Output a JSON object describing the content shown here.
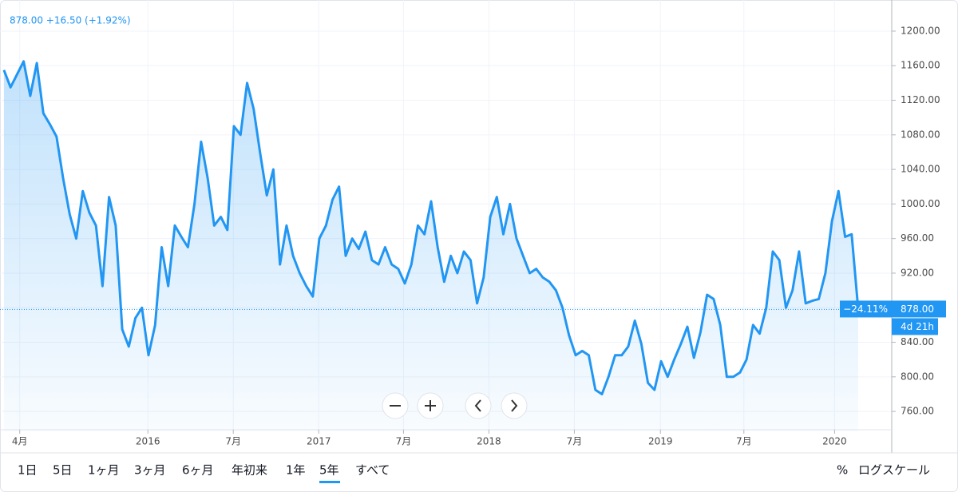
{
  "header": {
    "quote": "878.00 +16.50 (+1.92%)"
  },
  "chart_data": {
    "type": "area",
    "color": "#2196f3",
    "values": [
      1155,
      1135,
      1150,
      1165,
      1125,
      1163,
      1105,
      1092,
      1078,
      1030,
      988,
      960,
      1015,
      990,
      975,
      905,
      1008,
      975,
      855,
      835,
      868,
      880,
      825,
      860,
      950,
      905,
      975,
      962,
      950,
      1000,
      1072,
      1030,
      975,
      985,
      970,
      1090,
      1080,
      1140,
      1110,
      1058,
      1010,
      1040,
      930,
      975,
      940,
      920,
      905,
      893,
      960,
      975,
      1005,
      1020,
      940,
      960,
      948,
      968,
      935,
      930,
      950,
      930,
      925,
      908,
      930,
      975,
      965,
      1003,
      950,
      910,
      940,
      920,
      945,
      935,
      885,
      915,
      985,
      1008,
      965,
      1000,
      960,
      940,
      920,
      925,
      915,
      910,
      900,
      880,
      848,
      825,
      830,
      825,
      785,
      780,
      800,
      825,
      825,
      835,
      865,
      838,
      793,
      785,
      818,
      800,
      820,
      838,
      858,
      822,
      852,
      895,
      890,
      860,
      800,
      800,
      805,
      820,
      860,
      850,
      880,
      945,
      935,
      880,
      900,
      945,
      885,
      888,
      890,
      920,
      980,
      1015,
      962,
      965,
      878
    ],
    "xlim": [
      -0.6,
      135.1
    ],
    "ylim": [
      737,
      1236
    ],
    "xticks": [
      {
        "value": 2.4,
        "label": "4月"
      },
      {
        "value": 21.9,
        "label": "2016"
      },
      {
        "value": 34.9,
        "label": "7月"
      },
      {
        "value": 47.9,
        "label": "2017"
      },
      {
        "value": 60.8,
        "label": "7月"
      },
      {
        "value": 73.8,
        "label": "2018"
      },
      {
        "value": 86.8,
        "label": "7月"
      },
      {
        "value": 99.9,
        "label": "2019"
      },
      {
        "value": 112.6,
        "label": "7月"
      },
      {
        "value": 126.4,
        "label": "2020"
      }
    ],
    "yticks": [
      {
        "value": 760,
        "label": "760.00"
      },
      {
        "value": 800,
        "label": "800.00"
      },
      {
        "value": 840,
        "label": "840.00"
      },
      {
        "value": 880,
        "label": "880.00"
      },
      {
        "value": 920,
        "label": "920.00"
      },
      {
        "value": 960,
        "label": "960.00"
      },
      {
        "value": 1000,
        "label": "1000.00"
      },
      {
        "value": 1040,
        "label": "1040.00"
      },
      {
        "value": 1080,
        "label": "1080.00"
      },
      {
        "value": 1120,
        "label": "1120.00"
      },
      {
        "value": 1160,
        "label": "1160.00"
      },
      {
        "value": 1200,
        "label": "1200.00"
      }
    ],
    "grid": true,
    "price_line": {
      "value": 878,
      "label": "878.00"
    },
    "change_label": "−24.11%",
    "countdown": "4d 21h"
  },
  "toolbar": {
    "ranges": [
      "1日",
      "5日",
      "1ヶ月",
      "3ヶ月",
      "6ヶ月",
      "年初来",
      "1年",
      "5年",
      "すべて"
    ],
    "active": 7,
    "right": [
      "%",
      "ログスケール"
    ]
  }
}
